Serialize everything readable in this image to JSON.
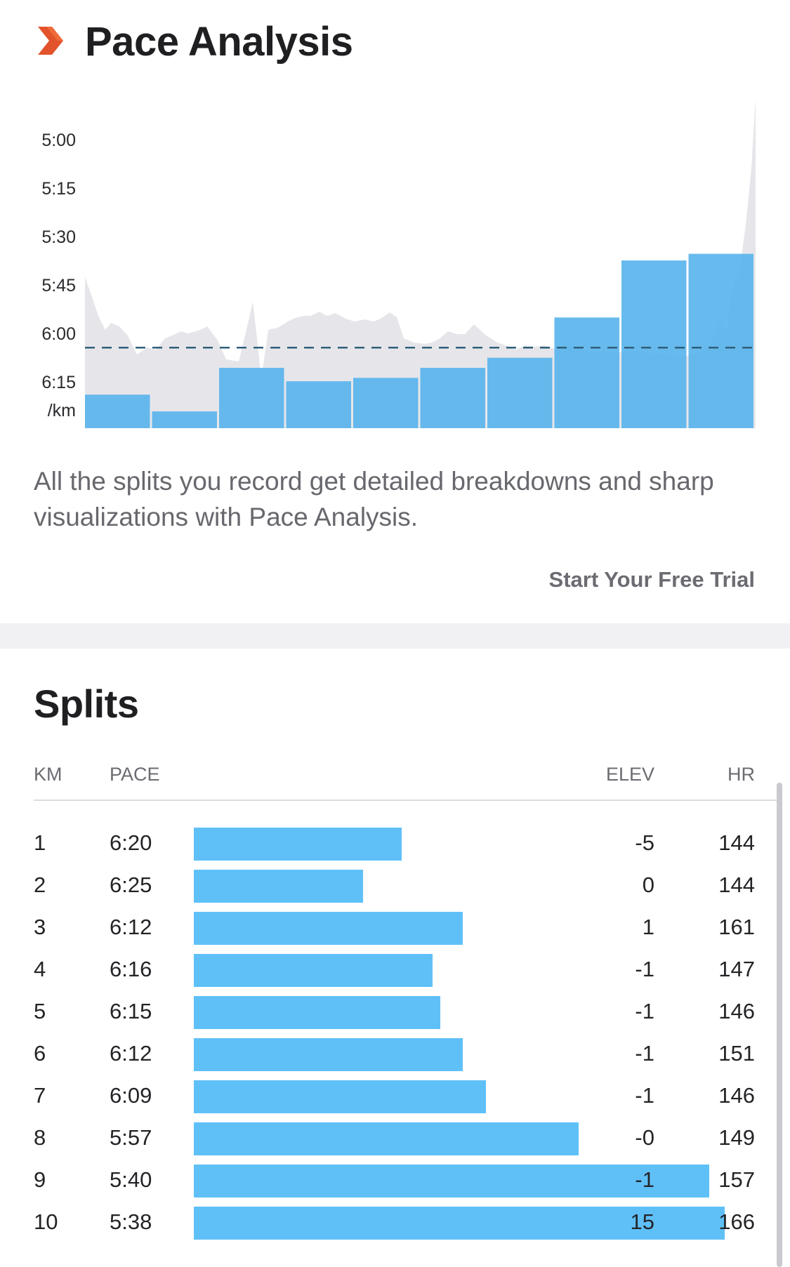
{
  "header": {
    "icon": "chevron-right-icon",
    "title": "Pace Analysis"
  },
  "pace_chart": {
    "y_tick_labels": [
      "5:00",
      "5:15",
      "5:30",
      "5:45",
      "6:00",
      "6:15"
    ],
    "y_unit": "/km",
    "bar_color": "#5ab4ec",
    "avg_line_color": "#2f5f7a",
    "area_color": "#e6e6ea"
  },
  "chart_data": {
    "type": "bar",
    "categories": [
      "1",
      "2",
      "3",
      "4",
      "5",
      "6",
      "7",
      "8",
      "9",
      "10"
    ],
    "values": [
      "6:20",
      "6:25",
      "6:12",
      "6:16",
      "6:15",
      "6:12",
      "6:09",
      "5:57",
      "5:40",
      "5:38"
    ],
    "values_seconds_per_km": [
      380,
      385,
      372,
      376,
      375,
      372,
      369,
      357,
      340,
      338
    ],
    "average_pace": "6:06",
    "ylabel": "/km",
    "ylim": [
      "6:30",
      "5:00"
    ],
    "y_inverted": true,
    "grid": false
  },
  "promo": {
    "text": "All the splits you record get detailed breakdowns and sharp visualizations with Pace Analysis.",
    "cta_label": "Start Your Free Trial"
  },
  "splits": {
    "title": "Splits",
    "columns": {
      "km": "KM",
      "pace": "PACE",
      "elev": "ELEV",
      "hr": "HR"
    },
    "bar_color": "#5fc0f8",
    "rows": [
      {
        "km": "1",
        "pace": "6:20",
        "elev": "-5",
        "hr": "144"
      },
      {
        "km": "2",
        "pace": "6:25",
        "elev": "0",
        "hr": "144"
      },
      {
        "km": "3",
        "pace": "6:12",
        "elev": "1",
        "hr": "161"
      },
      {
        "km": "4",
        "pace": "6:16",
        "elev": "-1",
        "hr": "147"
      },
      {
        "km": "5",
        "pace": "6:15",
        "elev": "-1",
        "hr": "146"
      },
      {
        "km": "6",
        "pace": "6:12",
        "elev": "-1",
        "hr": "151"
      },
      {
        "km": "7",
        "pace": "6:09",
        "elev": "-1",
        "hr": "146"
      },
      {
        "km": "8",
        "pace": "5:57",
        "elev": "-0",
        "hr": "149"
      },
      {
        "km": "9",
        "pace": "5:40",
        "elev": "-1",
        "hr": "157"
      },
      {
        "km": "10",
        "pace": "5:38",
        "elev": "15",
        "hr": "166"
      }
    ]
  }
}
